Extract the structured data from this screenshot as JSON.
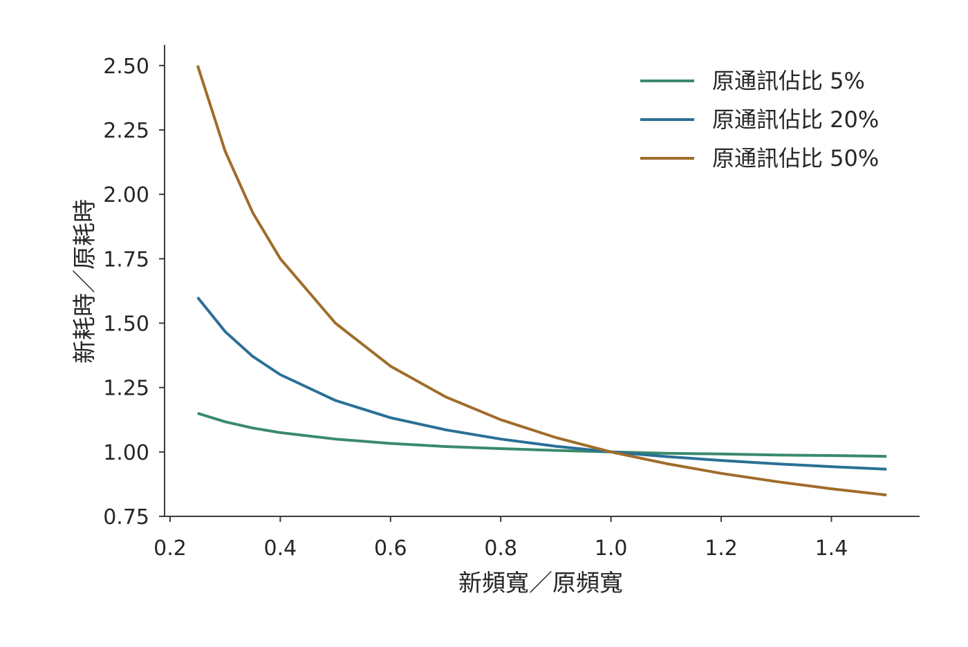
{
  "chart_data": {
    "type": "line",
    "xlabel": "新頻寬／原頻寬",
    "ylabel": "新耗時／原耗時",
    "xlim": [
      0.19,
      1.56
    ],
    "ylim": [
      0.75,
      2.58
    ],
    "x_ticks": [
      0.2,
      0.4,
      0.6,
      0.8,
      1.0,
      1.2,
      1.4
    ],
    "x_tick_labels": [
      "0.2",
      "0.4",
      "0.6",
      "0.8",
      "1.0",
      "1.2",
      "1.4"
    ],
    "y_ticks": [
      0.75,
      1.0,
      1.25,
      1.5,
      1.75,
      2.0,
      2.25,
      2.5
    ],
    "y_tick_labels": [
      "0.75",
      "1.00",
      "1.25",
      "1.50",
      "1.75",
      "2.00",
      "2.25",
      "2.50"
    ],
    "grid": false,
    "legend_position": "top-right",
    "series": [
      {
        "name": "原通訊佔比 5%",
        "color": "#3a8a6a",
        "x": [
          0.25,
          0.3,
          0.35,
          0.4,
          0.5,
          0.6,
          0.7,
          0.8,
          0.9,
          1.0,
          1.1,
          1.2,
          1.3,
          1.4,
          1.5
        ],
        "y": [
          1.15,
          1.117,
          1.093,
          1.075,
          1.05,
          1.033,
          1.021,
          1.013,
          1.006,
          1.0,
          0.995,
          0.992,
          0.988,
          0.986,
          0.983
        ]
      },
      {
        "name": "原通訊佔比 20%",
        "color": "#2a6f96",
        "x": [
          0.25,
          0.3,
          0.35,
          0.4,
          0.5,
          0.6,
          0.7,
          0.8,
          0.9,
          1.0,
          1.1,
          1.2,
          1.3,
          1.4,
          1.5
        ],
        "y": [
          1.6,
          1.467,
          1.371,
          1.3,
          1.2,
          1.133,
          1.086,
          1.05,
          1.022,
          1.0,
          0.982,
          0.967,
          0.954,
          0.943,
          0.933
        ]
      },
      {
        "name": "原通訊佔比 50%",
        "color": "#a06c2a",
        "x": [
          0.25,
          0.3,
          0.35,
          0.4,
          0.5,
          0.6,
          0.7,
          0.8,
          0.9,
          1.0,
          1.1,
          1.2,
          1.3,
          1.4,
          1.5
        ],
        "y": [
          2.5,
          2.167,
          1.929,
          1.75,
          1.5,
          1.333,
          1.214,
          1.125,
          1.056,
          1.0,
          0.955,
          0.917,
          0.885,
          0.857,
          0.833
        ]
      }
    ]
  }
}
